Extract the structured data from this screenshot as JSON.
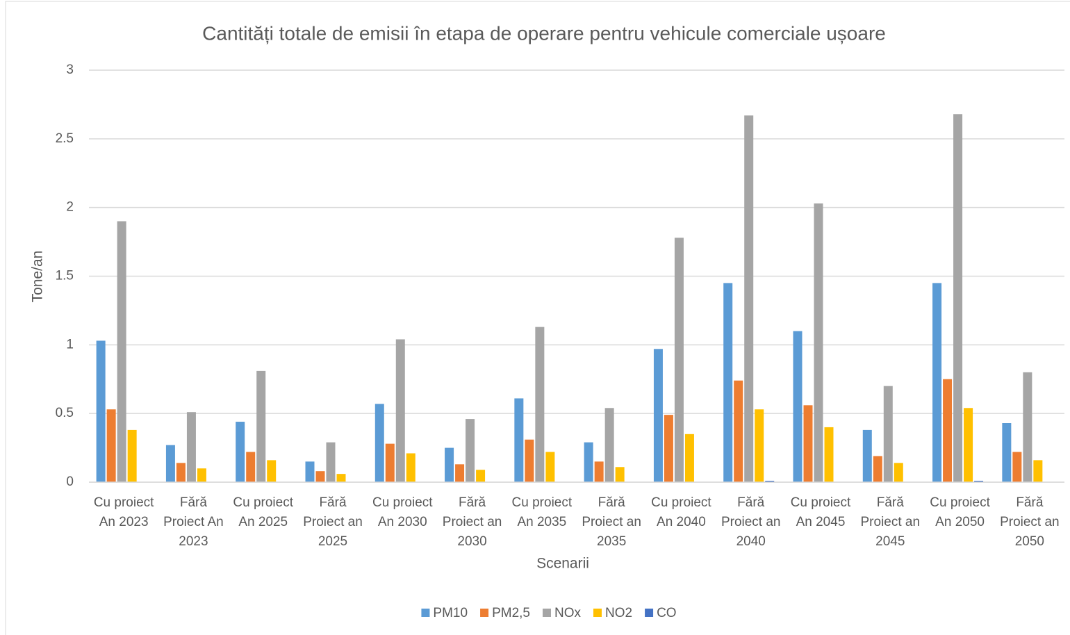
{
  "chart_data": {
    "type": "bar",
    "title": "Cantități totale de emisii în etapa de operare pentru vehicule comerciale ușoare",
    "x_label": "Scenarii",
    "y_label": "Tone/an",
    "categories": [
      "Cu proiect An 2023",
      "Fără Proiect An 2023",
      "Cu proiect An 2025",
      "Fără Proiect an 2025",
      "Cu proiect An 2030",
      "Fără Proiect an 2030",
      "Cu proiect An 2035",
      "Fără Proiect an 2035",
      "Cu proiect An 2040",
      "Fără Proiect an 2040",
      "Cu proiect An 2045",
      "Fără Proiect an 2045",
      "Cu proiect An 2050",
      "Fără Proiect an 2050"
    ],
    "series": [
      {
        "name": "PM10",
        "color": "#5b9bd5",
        "values": [
          1.03,
          0.27,
          0.44,
          0.15,
          0.57,
          0.25,
          0.61,
          0.29,
          0.97,
          1.45,
          1.1,
          0.38,
          1.45,
          0.43
        ]
      },
      {
        "name": "PM2,5",
        "color": "#ed7d31",
        "values": [
          0.53,
          0.14,
          0.22,
          0.08,
          0.28,
          0.13,
          0.31,
          0.15,
          0.49,
          0.74,
          0.56,
          0.19,
          0.75,
          0.22
        ]
      },
      {
        "name": "NOx",
        "color": "#a5a5a5",
        "values": [
          1.9,
          0.51,
          0.81,
          0.29,
          1.04,
          0.46,
          1.13,
          0.54,
          1.78,
          2.67,
          2.03,
          0.7,
          2.68,
          0.8
        ]
      },
      {
        "name": "NO2",
        "color": "#ffc000",
        "values": [
          0.38,
          0.1,
          0.16,
          0.06,
          0.21,
          0.09,
          0.22,
          0.11,
          0.35,
          0.53,
          0.4,
          0.14,
          0.54,
          0.16
        ]
      },
      {
        "name": "CO",
        "color": "#4472c4",
        "values": [
          0,
          0,
          0,
          0,
          0,
          0,
          0,
          0,
          0,
          0.01,
          0,
          0,
          0.01,
          0
        ]
      }
    ],
    "ylim": [
      0,
      3
    ],
    "yticks": [
      0,
      0.5,
      1,
      1.5,
      2,
      2.5,
      3
    ],
    "grid": true,
    "legend": "bottom"
  }
}
